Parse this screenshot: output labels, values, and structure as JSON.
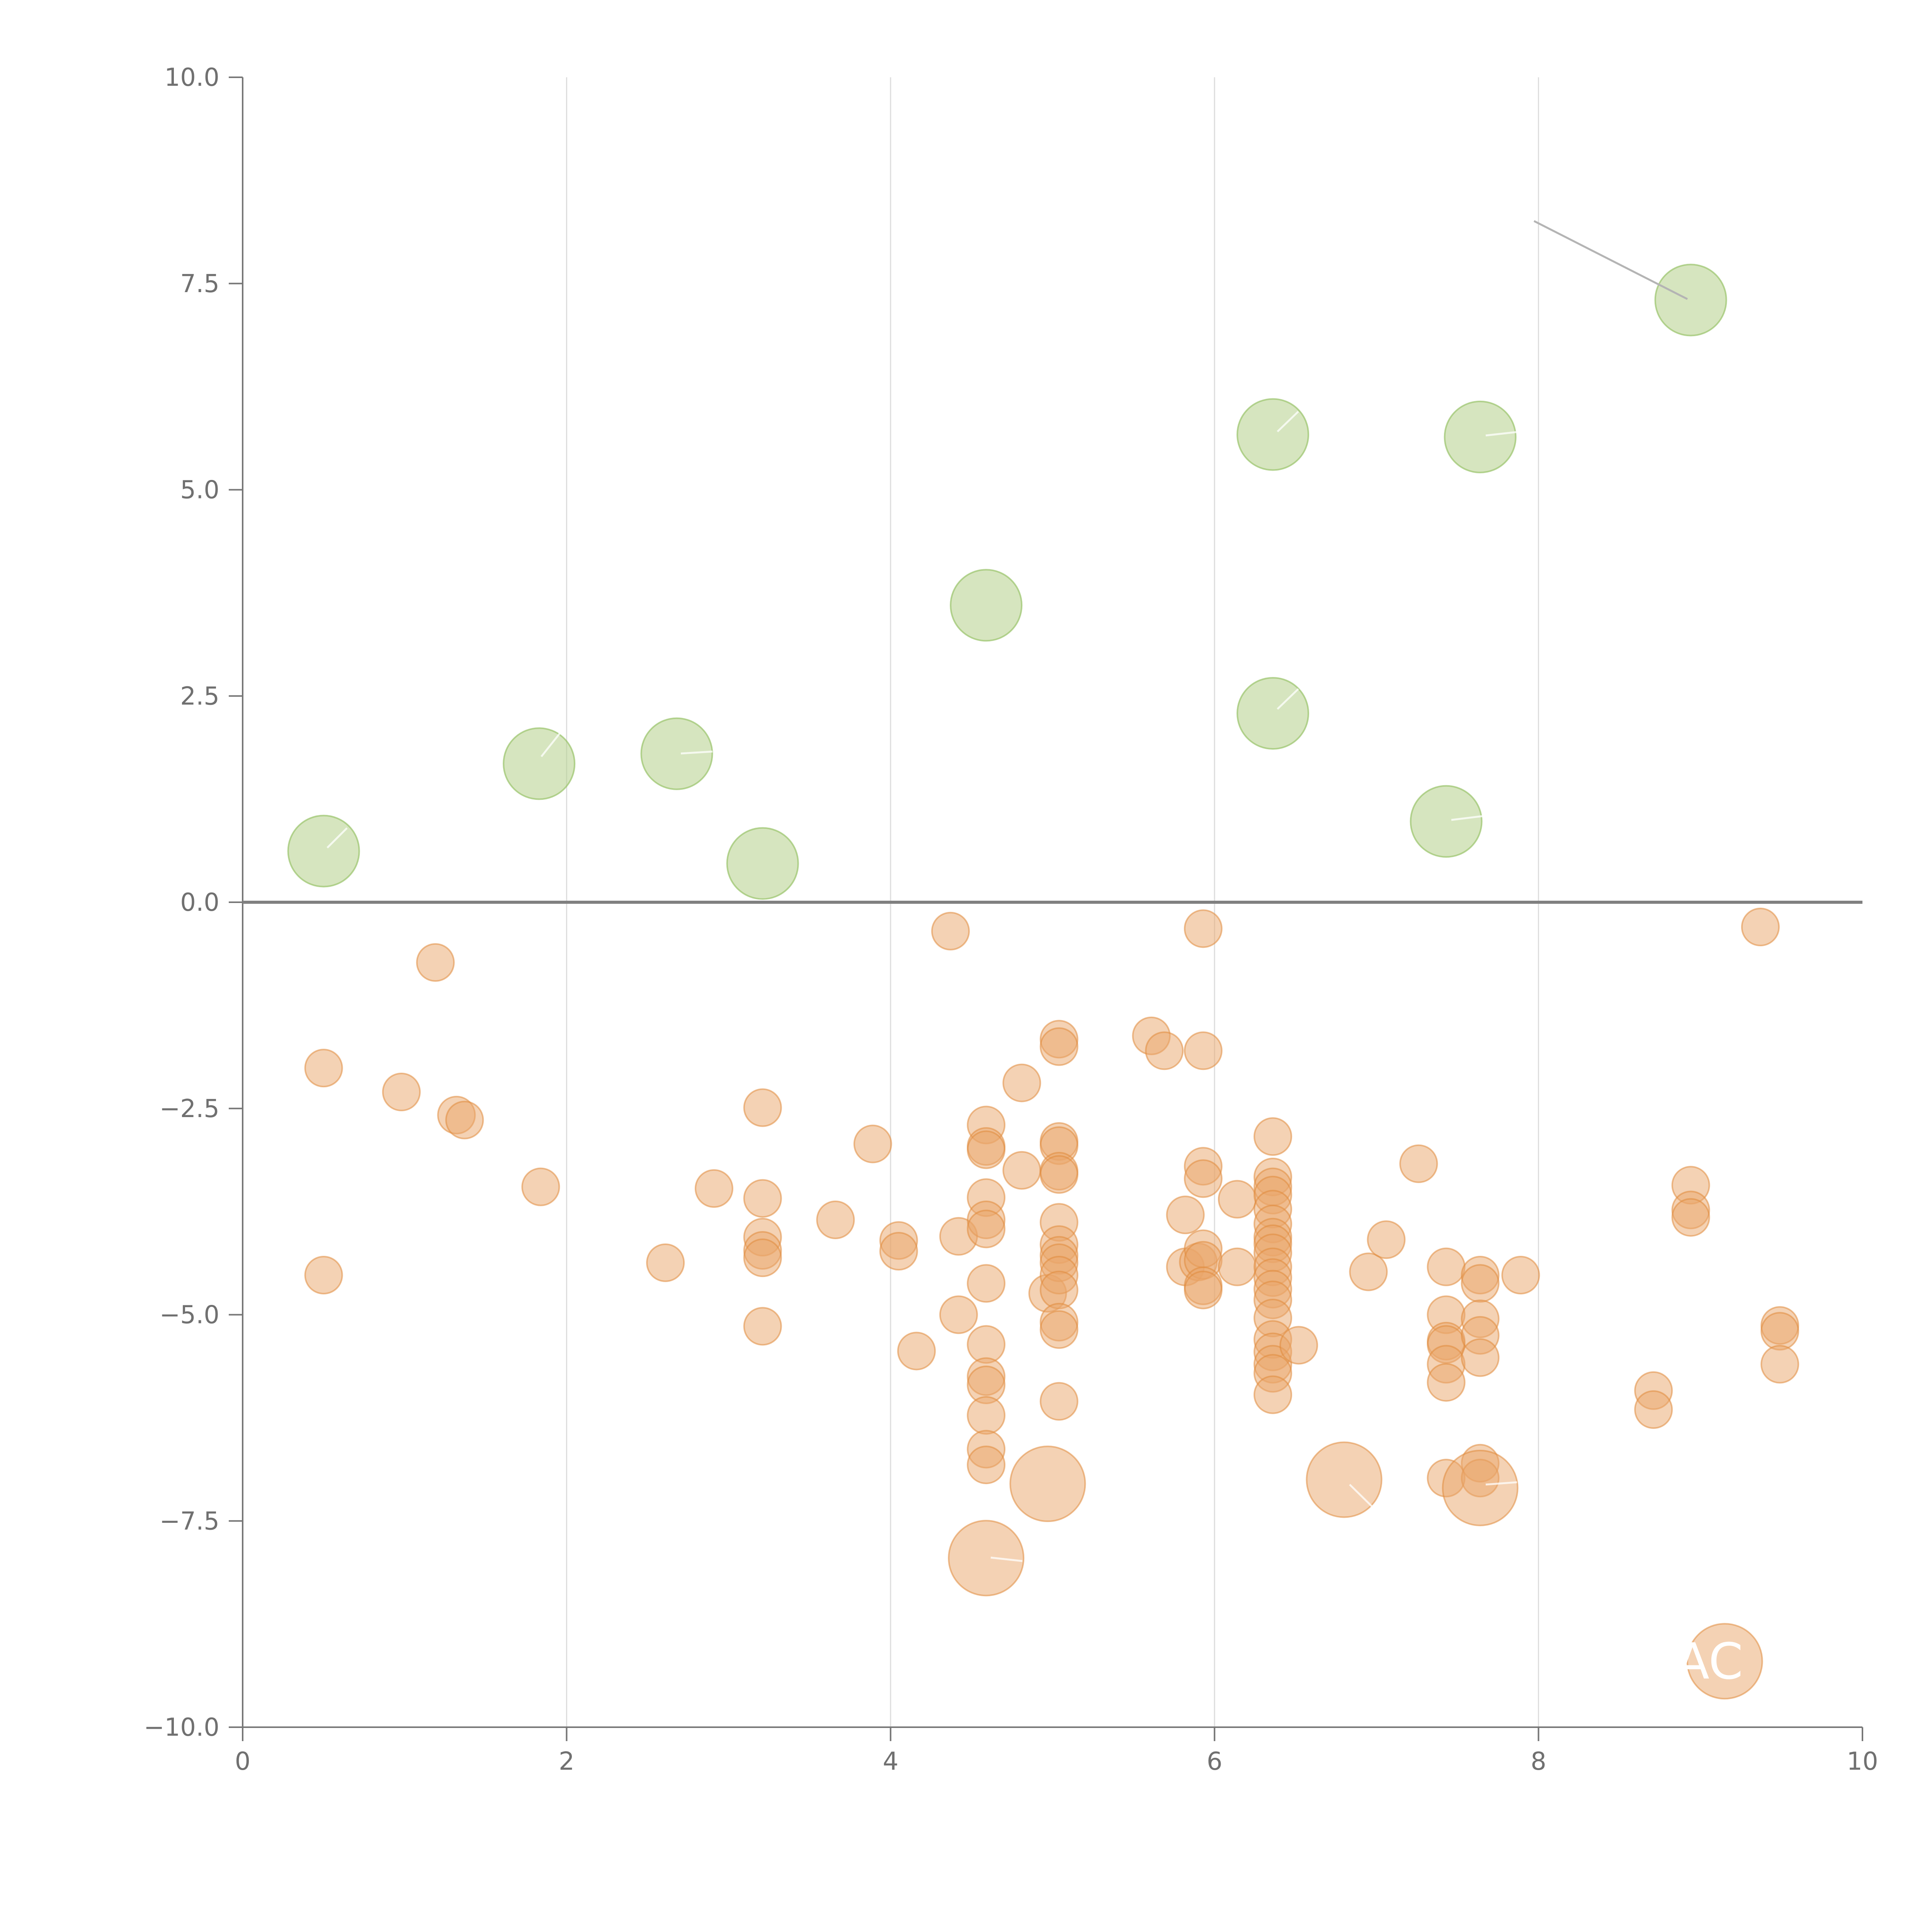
{
  "chart_data": {
    "type": "scatter",
    "title": "",
    "xlabel": "",
    "ylabel": "",
    "xlim": [
      0,
      10
    ],
    "ylim": [
      -10,
      10
    ],
    "x_ticks": [
      0,
      2,
      4,
      6,
      8,
      10
    ],
    "x_tick_labels": [
      "0",
      "2",
      "4",
      "6",
      "8",
      "10"
    ],
    "y_ticks": [
      10,
      7.5,
      5,
      2.5,
      0,
      -2.5,
      -5,
      -7.5,
      -10
    ],
    "y_tick_labels": [
      "10.0",
      "7.5",
      "5.0",
      "2.5",
      "0.0",
      "−2.5",
      "−5.0",
      "−7.5",
      "−10.0"
    ],
    "grid": "vertical",
    "reference_line_y": 0,
    "colors": {
      "positive": "#b5d08a",
      "negative": "#e9a56a",
      "axis": "#777777",
      "grid": "#dddddd"
    },
    "series": [
      {
        "name": "positive",
        "color": "#b5d08a",
        "points": [
          {
            "x": 0.5,
            "y": 0.62,
            "size": 2
          },
          {
            "x": 1.83,
            "y": 1.68,
            "size": 2
          },
          {
            "x": 2.68,
            "y": 1.8,
            "size": 2
          },
          {
            "x": 3.21,
            "y": 0.47,
            "size": 2
          },
          {
            "x": 4.59,
            "y": 3.6,
            "size": 2
          },
          {
            "x": 6.36,
            "y": 5.67,
            "size": 2
          },
          {
            "x": 6.36,
            "y": 2.29,
            "size": 2
          },
          {
            "x": 7.64,
            "y": 5.64,
            "size": 2
          },
          {
            "x": 7.43,
            "y": 0.98,
            "size": 2
          },
          {
            "x": 8.94,
            "y": 7.3,
            "size": 2
          }
        ]
      },
      {
        "name": "negative",
        "color": "#e9a56a",
        "points": [
          {
            "x": 1.19,
            "y": -0.73,
            "size": 1
          },
          {
            "x": 0.5,
            "y": -2.01,
            "size": 1
          },
          {
            "x": 0.98,
            "y": -2.3,
            "size": 1
          },
          {
            "x": 1.32,
            "y": -2.58,
            "size": 1
          },
          {
            "x": 1.37,
            "y": -2.64,
            "size": 1
          },
          {
            "x": 1.84,
            "y": -3.45,
            "size": 1
          },
          {
            "x": 0.5,
            "y": -4.52,
            "size": 1
          },
          {
            "x": 2.61,
            "y": -4.37,
            "size": 1
          },
          {
            "x": 2.91,
            "y": -3.47,
            "size": 1
          },
          {
            "x": 3.21,
            "y": -2.49,
            "size": 1
          },
          {
            "x": 3.21,
            "y": -3.59,
            "size": 1
          },
          {
            "x": 3.21,
            "y": -4.06,
            "size": 1
          },
          {
            "x": 3.21,
            "y": -4.22,
            "size": 1
          },
          {
            "x": 3.21,
            "y": -4.31,
            "size": 1
          },
          {
            "x": 3.21,
            "y": -5.14,
            "size": 1
          },
          {
            "x": 3.66,
            "y": -3.85,
            "size": 1
          },
          {
            "x": 3.89,
            "y": -2.93,
            "size": 1
          },
          {
            "x": 4.05,
            "y": -4.1,
            "size": 1
          },
          {
            "x": 4.05,
            "y": -4.23,
            "size": 1
          },
          {
            "x": 4.16,
            "y": -5.44,
            "size": 1
          },
          {
            "x": 4.37,
            "y": -0.35,
            "size": 1
          },
          {
            "x": 4.42,
            "y": -4.05,
            "size": 1
          },
          {
            "x": 4.42,
            "y": -5.0,
            "size": 1
          },
          {
            "x": 4.59,
            "y": -2.7,
            "size": 1
          },
          {
            "x": 4.59,
            "y": -2.96,
            "size": 1
          },
          {
            "x": 4.59,
            "y": -3.0,
            "size": 1
          },
          {
            "x": 4.59,
            "y": -3.58,
            "size": 1
          },
          {
            "x": 4.59,
            "y": -3.85,
            "size": 1
          },
          {
            "x": 4.59,
            "y": -3.96,
            "size": 1
          },
          {
            "x": 4.59,
            "y": -4.62,
            "size": 1
          },
          {
            "x": 4.59,
            "y": -5.36,
            "size": 1
          },
          {
            "x": 4.59,
            "y": -5.75,
            "size": 1
          },
          {
            "x": 4.59,
            "y": -5.85,
            "size": 1
          },
          {
            "x": 4.59,
            "y": -6.22,
            "size": 1
          },
          {
            "x": 4.59,
            "y": -6.63,
            "size": 1
          },
          {
            "x": 4.59,
            "y": -6.82,
            "size": 1
          },
          {
            "x": 4.81,
            "y": -2.19,
            "size": 1
          },
          {
            "x": 4.81,
            "y": -3.25,
            "size": 1
          },
          {
            "x": 4.97,
            "y": -4.74,
            "size": 1
          },
          {
            "x": 5.04,
            "y": -1.66,
            "size": 1
          },
          {
            "x": 5.04,
            "y": -1.75,
            "size": 1
          },
          {
            "x": 5.04,
            "y": -2.9,
            "size": 1
          },
          {
            "x": 5.04,
            "y": -2.95,
            "size": 1
          },
          {
            "x": 5.04,
            "y": -3.26,
            "size": 1
          },
          {
            "x": 5.04,
            "y": -3.3,
            "size": 1
          },
          {
            "x": 5.04,
            "y": -3.88,
            "size": 1
          },
          {
            "x": 5.04,
            "y": -4.15,
            "size": 1
          },
          {
            "x": 5.04,
            "y": -4.28,
            "size": 1
          },
          {
            "x": 5.04,
            "y": -4.37,
            "size": 1
          },
          {
            "x": 5.04,
            "y": -4.52,
            "size": 1
          },
          {
            "x": 5.04,
            "y": -4.7,
            "size": 1
          },
          {
            "x": 5.04,
            "y": -5.09,
            "size": 1
          },
          {
            "x": 5.04,
            "y": -5.18,
            "size": 1
          },
          {
            "x": 5.04,
            "y": -6.05,
            "size": 1
          },
          {
            "x": 5.61,
            "y": -1.62,
            "size": 1
          },
          {
            "x": 5.69,
            "y": -1.8,
            "size": 1
          },
          {
            "x": 5.82,
            "y": -3.79,
            "size": 1
          },
          {
            "x": 5.82,
            "y": -4.42,
            "size": 1
          },
          {
            "x": 5.9,
            "y": -4.36,
            "size": 1
          },
          {
            "x": 5.93,
            "y": -0.32,
            "size": 1
          },
          {
            "x": 5.93,
            "y": -1.8,
            "size": 1
          },
          {
            "x": 5.93,
            "y": -3.2,
            "size": 1
          },
          {
            "x": 5.93,
            "y": -3.35,
            "size": 1
          },
          {
            "x": 5.93,
            "y": -4.2,
            "size": 1
          },
          {
            "x": 5.93,
            "y": -4.34,
            "size": 1
          },
          {
            "x": 5.93,
            "y": -4.65,
            "size": 1
          },
          {
            "x": 5.93,
            "y": -4.7,
            "size": 1
          },
          {
            "x": 6.14,
            "y": -3.6,
            "size": 1
          },
          {
            "x": 6.14,
            "y": -4.42,
            "size": 1
          },
          {
            "x": 6.36,
            "y": -2.84,
            "size": 1
          },
          {
            "x": 6.36,
            "y": -3.33,
            "size": 1
          },
          {
            "x": 6.36,
            "y": -3.45,
            "size": 1
          },
          {
            "x": 6.36,
            "y": -3.55,
            "size": 1
          },
          {
            "x": 6.36,
            "y": -3.72,
            "size": 1
          },
          {
            "x": 6.36,
            "y": -3.9,
            "size": 1
          },
          {
            "x": 6.36,
            "y": -4.06,
            "size": 1
          },
          {
            "x": 6.36,
            "y": -4.14,
            "size": 1
          },
          {
            "x": 6.36,
            "y": -4.25,
            "size": 1
          },
          {
            "x": 6.36,
            "y": -4.42,
            "size": 1
          },
          {
            "x": 6.36,
            "y": -4.55,
            "size": 1
          },
          {
            "x": 6.36,
            "y": -4.69,
            "size": 1
          },
          {
            "x": 6.36,
            "y": -4.82,
            "size": 1
          },
          {
            "x": 6.36,
            "y": -5.04,
            "size": 1
          },
          {
            "x": 6.36,
            "y": -5.3,
            "size": 1
          },
          {
            "x": 6.36,
            "y": -5.45,
            "size": 1
          },
          {
            "x": 6.36,
            "y": -5.6,
            "size": 1
          },
          {
            "x": 6.36,
            "y": -5.71,
            "size": 1
          },
          {
            "x": 6.36,
            "y": -5.97,
            "size": 1
          },
          {
            "x": 6.52,
            "y": -5.37,
            "size": 1
          },
          {
            "x": 6.95,
            "y": -4.48,
            "size": 1
          },
          {
            "x": 7.06,
            "y": -4.09,
            "size": 1
          },
          {
            "x": 7.26,
            "y": -3.17,
            "size": 1
          },
          {
            "x": 7.43,
            "y": -4.42,
            "size": 1
          },
          {
            "x": 7.43,
            "y": -5.0,
            "size": 1
          },
          {
            "x": 7.43,
            "y": -5.32,
            "size": 1
          },
          {
            "x": 7.43,
            "y": -5.36,
            "size": 1
          },
          {
            "x": 7.43,
            "y": -5.6,
            "size": 1
          },
          {
            "x": 7.43,
            "y": -5.82,
            "size": 1
          },
          {
            "x": 7.43,
            "y": -6.98,
            "size": 1
          },
          {
            "x": 7.64,
            "y": -4.52,
            "size": 1
          },
          {
            "x": 7.64,
            "y": -4.62,
            "size": 1
          },
          {
            "x": 7.64,
            "y": -5.05,
            "size": 1
          },
          {
            "x": 7.64,
            "y": -5.25,
            "size": 1
          },
          {
            "x": 7.64,
            "y": -5.52,
            "size": 1
          },
          {
            "x": 7.64,
            "y": -6.8,
            "size": 1
          },
          {
            "x": 7.64,
            "y": -6.98,
            "size": 1
          },
          {
            "x": 7.89,
            "y": -4.52,
            "size": 1
          },
          {
            "x": 8.71,
            "y": -5.92,
            "size": 1
          },
          {
            "x": 8.71,
            "y": -6.15,
            "size": 1
          },
          {
            "x": 8.94,
            "y": -3.43,
            "size": 1
          },
          {
            "x": 8.94,
            "y": -3.73,
            "size": 1
          },
          {
            "x": 8.94,
            "y": -3.82,
            "size": 1
          },
          {
            "x": 9.37,
            "y": -0.3,
            "size": 1
          },
          {
            "x": 9.49,
            "y": -5.13,
            "size": 1
          },
          {
            "x": 9.49,
            "y": -5.2,
            "size": 1
          },
          {
            "x": 9.49,
            "y": -5.6,
            "size": 1
          },
          {
            "x": 4.59,
            "y": -7.95,
            "size": 3
          },
          {
            "x": 4.97,
            "y": -7.05,
            "size": 3
          },
          {
            "x": 6.8,
            "y": -7.0,
            "size": 3
          },
          {
            "x": 7.64,
            "y": -7.1,
            "size": 3
          },
          {
            "x": 9.15,
            "y": -9.2,
            "size": 3
          }
        ]
      }
    ],
    "annotations": [
      {
        "text": "AC",
        "x": 9.15,
        "y": -9.2
      }
    ]
  }
}
